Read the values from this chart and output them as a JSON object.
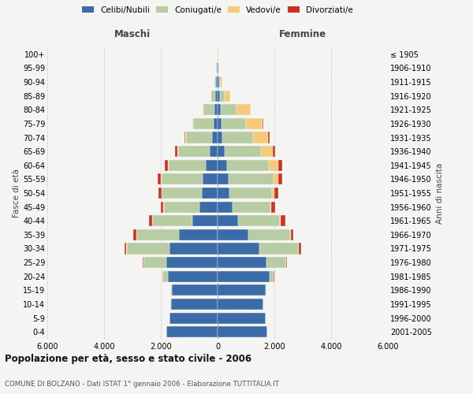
{
  "age_groups": [
    "0-4",
    "5-9",
    "10-14",
    "15-19",
    "20-24",
    "25-29",
    "30-34",
    "35-39",
    "40-44",
    "45-49",
    "50-54",
    "55-59",
    "60-64",
    "65-69",
    "70-74",
    "75-79",
    "80-84",
    "85-89",
    "90-94",
    "95-99",
    "100+"
  ],
  "birth_years": [
    "2001-2005",
    "1996-2000",
    "1991-1995",
    "1986-1990",
    "1981-1985",
    "1976-1980",
    "1971-1975",
    "1966-1970",
    "1961-1965",
    "1956-1960",
    "1951-1955",
    "1946-1950",
    "1941-1945",
    "1936-1940",
    "1931-1935",
    "1926-1930",
    "1921-1925",
    "1916-1920",
    "1911-1915",
    "1906-1910",
    "≤ 1905"
  ],
  "males_celibi": [
    1800,
    1700,
    1650,
    1600,
    1750,
    1800,
    1700,
    1350,
    900,
    650,
    560,
    520,
    420,
    280,
    200,
    150,
    100,
    80,
    50,
    30,
    10
  ],
  "males_coniugati": [
    0,
    5,
    20,
    50,
    200,
    800,
    1500,
    1500,
    1400,
    1250,
    1400,
    1450,
    1300,
    1100,
    900,
    700,
    400,
    150,
    60,
    20,
    5
  ],
  "males_vedovi": [
    0,
    0,
    0,
    5,
    10,
    10,
    10,
    10,
    5,
    5,
    10,
    20,
    30,
    30,
    40,
    30,
    30,
    20,
    10,
    5,
    2
  ],
  "males_divorziati": [
    0,
    0,
    0,
    5,
    10,
    30,
    80,
    100,
    120,
    100,
    110,
    130,
    120,
    80,
    40,
    15,
    10,
    5,
    2,
    0,
    0
  ],
  "females_nubili": [
    1750,
    1700,
    1600,
    1690,
    1840,
    1730,
    1480,
    1080,
    720,
    530,
    430,
    380,
    330,
    240,
    180,
    130,
    100,
    80,
    50,
    25,
    8
  ],
  "females_coniugate": [
    0,
    5,
    10,
    25,
    140,
    680,
    1380,
    1480,
    1480,
    1330,
    1480,
    1580,
    1480,
    1280,
    1080,
    880,
    580,
    180,
    70,
    25,
    4
  ],
  "females_vedove": [
    0,
    0,
    0,
    4,
    4,
    4,
    4,
    10,
    16,
    40,
    90,
    180,
    330,
    430,
    530,
    580,
    480,
    180,
    50,
    16,
    4
  ],
  "females_divorziate": [
    0,
    0,
    0,
    4,
    8,
    25,
    70,
    110,
    160,
    120,
    130,
    150,
    140,
    90,
    45,
    16,
    8,
    4,
    2,
    0,
    0
  ],
  "color_celibi": "#3c6ca8",
  "color_coniugati": "#b8cca4",
  "color_vedovi": "#f5ca7a",
  "color_divorziati": "#cc3322",
  "xlim": 6000,
  "xtick_positions": [
    -6000,
    -4000,
    -2000,
    0,
    2000,
    4000,
    6000
  ],
  "xtick_labels": [
    "6.000",
    "4.000",
    "2.000",
    "0",
    "2.000",
    "4.000",
    "6.000"
  ],
  "title": "Popolazione per età, sesso e stato civile - 2006",
  "subtitle": "COMUNE DI BOLZANO - Dati ISTAT 1° gennaio 2006 - Elaborazione TUTTITALIA.IT",
  "ylabel_left": "Fasce di età",
  "ylabel_right": "Anni di nascita",
  "header_left": "Maschi",
  "header_right": "Femmine",
  "legend_labels": [
    "Celibi/Nubili",
    "Coniugati/e",
    "Vedovi/e",
    "Divorziati/e"
  ],
  "legend_colors": [
    "#3c6ca8",
    "#b8cca4",
    "#f5ca7a",
    "#cc3322"
  ],
  "bg_color": "#f4f4f2"
}
